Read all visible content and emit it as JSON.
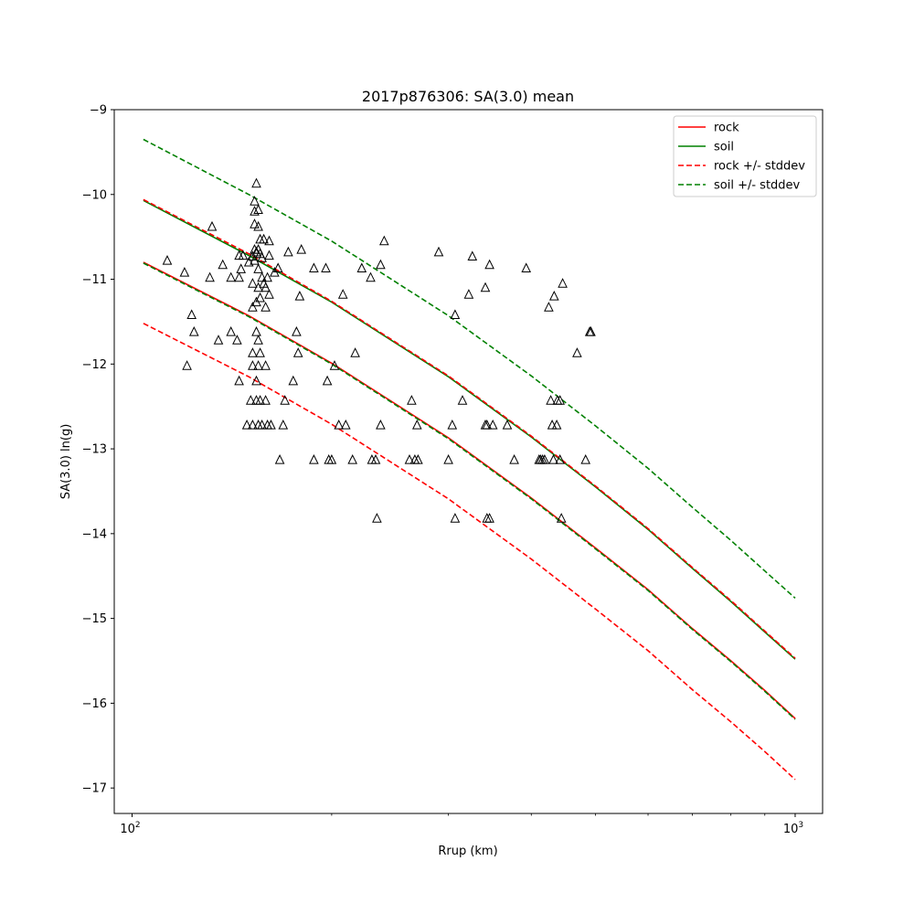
{
  "chart_data": {
    "type": "scatter",
    "title": "2017p876306: SA(3.0) mean",
    "xlabel": "Rrup (km)",
    "ylabel": "SA(3.0) ln(g)",
    "xscale": "log",
    "xlim": [
      94,
      1100
    ],
    "ylim": [
      -17.3,
      -9.0
    ],
    "x_ticks": [
      {
        "value": 100,
        "base": "10",
        "exp": "2"
      },
      {
        "value": 1000,
        "base": "10",
        "exp": "3"
      }
    ],
    "y_ticks": [
      -9,
      -10,
      -11,
      -12,
      -13,
      -14,
      -15,
      -16,
      -17
    ],
    "y_tick_labels": [
      "−9",
      "−10",
      "−11",
      "−12",
      "−13",
      "−14",
      "−15",
      "−16",
      "−17"
    ],
    "legend": {
      "placement": "top-right",
      "entries": [
        {
          "label": "rock",
          "color": "#ff0000",
          "style": "solid"
        },
        {
          "label": "soil",
          "color": "#008000",
          "style": "solid"
        },
        {
          "label": "rock +/- stddev",
          "color": "#ff0000",
          "style": "dashed"
        },
        {
          "label": "soil +/- stddev",
          "color": "#008000",
          "style": "dashed"
        }
      ]
    },
    "lines": [
      {
        "name": "rock",
        "color": "#ff0000",
        "style": "solid",
        "x": [
          104,
          150,
          200,
          300,
          400,
          500,
          600,
          700,
          800,
          900,
          1000
        ],
        "y": [
          -10.8,
          -11.43,
          -11.99,
          -12.87,
          -13.58,
          -14.17,
          -14.66,
          -15.12,
          -15.5,
          -15.85,
          -16.18
        ]
      },
      {
        "name": "soil",
        "color": "#008000",
        "style": "solid",
        "x": [
          104,
          150,
          200,
          300,
          400,
          500,
          600,
          700,
          800,
          900,
          1000
        ],
        "y": [
          -10.07,
          -10.72,
          -11.27,
          -12.15,
          -12.86,
          -13.45,
          -13.95,
          -14.41,
          -14.8,
          -15.16,
          -15.48
        ]
      },
      {
        "name": "rock_minus",
        "color": "#ff0000",
        "style": "dashed",
        "x": [
          104,
          150,
          200,
          300,
          400,
          500,
          600,
          700,
          800,
          900,
          1000
        ],
        "y": [
          -11.52,
          -12.15,
          -12.71,
          -13.59,
          -14.3,
          -14.89,
          -15.38,
          -15.84,
          -16.22,
          -16.57,
          -16.9
        ]
      },
      {
        "name": "rock_plus",
        "color": "#ff0000",
        "style": "dashed",
        "x": [
          104,
          150,
          200,
          300,
          400,
          500,
          600,
          700,
          800,
          900,
          1000
        ],
        "y": [
          -10.06,
          -10.7,
          -11.26,
          -12.14,
          -12.85,
          -13.44,
          -13.94,
          -14.4,
          -14.79,
          -15.15,
          -15.47
        ]
      },
      {
        "name": "soil_minus",
        "color": "#008000",
        "style": "dashed",
        "x": [
          104,
          150,
          200,
          300,
          400,
          500,
          600,
          700,
          800,
          900,
          1000
        ],
        "y": [
          -10.81,
          -11.44,
          -12.0,
          -12.88,
          -13.59,
          -14.18,
          -14.67,
          -15.13,
          -15.51,
          -15.86,
          -16.19
        ]
      },
      {
        "name": "soil_plus",
        "color": "#008000",
        "style": "dashed",
        "x": [
          104,
          150,
          200,
          300,
          400,
          500,
          600,
          700,
          800,
          900,
          1000
        ],
        "y": [
          -9.35,
          -10.0,
          -10.55,
          -11.43,
          -12.14,
          -12.73,
          -13.23,
          -13.69,
          -14.08,
          -14.44,
          -14.76
        ]
      }
    ],
    "points": [
      [
        113,
        -10.78
      ],
      [
        120,
        -10.92
      ],
      [
        121,
        -12.02
      ],
      [
        123,
        -11.42
      ],
      [
        124,
        -11.62
      ],
      [
        131,
        -10.98
      ],
      [
        132,
        -10.38
      ],
      [
        135,
        -11.72
      ],
      [
        137,
        -10.83
      ],
      [
        141,
        -11.62
      ],
      [
        141,
        -10.98
      ],
      [
        144,
        -11.72
      ],
      [
        145,
        -12.2
      ],
      [
        145,
        -10.98
      ],
      [
        145,
        -10.72
      ],
      [
        146,
        -10.88
      ],
      [
        147,
        -10.72
      ],
      [
        149,
        -12.72
      ],
      [
        150,
        -10.8
      ],
      [
        151,
        -12.43
      ],
      [
        152,
        -12.72
      ],
      [
        152,
        -12.02
      ],
      [
        152,
        -11.87
      ],
      [
        152,
        -11.33
      ],
      [
        152,
        -11.05
      ],
      [
        152,
        -10.73
      ],
      [
        153,
        -10.78
      ],
      [
        153,
        -10.65
      ],
      [
        153,
        -10.35
      ],
      [
        153,
        -10.2
      ],
      [
        153,
        -10.08
      ],
      [
        154,
        -9.87
      ],
      [
        154,
        -12.43
      ],
      [
        154,
        -12.2
      ],
      [
        154,
        -11.62
      ],
      [
        154,
        -11.27
      ],
      [
        154,
        -10.68
      ],
      [
        155,
        -10.38
      ],
      [
        155,
        -10.18
      ],
      [
        155,
        -12.72
      ],
      [
        155,
        -12.02
      ],
      [
        155,
        -11.72
      ],
      [
        155,
        -11.1
      ],
      [
        155,
        -10.88
      ],
      [
        155,
        -10.65
      ],
      [
        156,
        -10.53
      ],
      [
        156,
        -10.7
      ],
      [
        156,
        -12.43
      ],
      [
        156,
        -11.87
      ],
      [
        156,
        -11.22
      ],
      [
        157,
        -10.98
      ],
      [
        157,
        -10.75
      ],
      [
        157,
        -12.72
      ],
      [
        158,
        -11.05
      ],
      [
        158,
        -10.53
      ],
      [
        159,
        -11.33
      ],
      [
        159,
        -11.1
      ],
      [
        159,
        -12.43
      ],
      [
        159,
        -12.02
      ],
      [
        160,
        -12.72
      ],
      [
        160,
        -10.98
      ],
      [
        161,
        -10.72
      ],
      [
        161,
        -10.55
      ],
      [
        161,
        -11.18
      ],
      [
        162,
        -12.72
      ],
      [
        164,
        -10.92
      ],
      [
        166,
        -10.87
      ],
      [
        167,
        -13.13
      ],
      [
        169,
        -12.72
      ],
      [
        170,
        -12.43
      ],
      [
        172,
        -10.68
      ],
      [
        175,
        -12.2
      ],
      [
        177,
        -11.62
      ],
      [
        178,
        -11.87
      ],
      [
        179,
        -11.2
      ],
      [
        180,
        -10.65
      ],
      [
        188,
        -10.87
      ],
      [
        188,
        -13.13
      ],
      [
        196,
        -10.87
      ],
      [
        197,
        -12.2
      ],
      [
        198,
        -13.13
      ],
      [
        200,
        -13.13
      ],
      [
        202,
        -12.02
      ],
      [
        205,
        -12.72
      ],
      [
        208,
        -11.18
      ],
      [
        210,
        -12.72
      ],
      [
        215,
        -13.13
      ],
      [
        217,
        -11.87
      ],
      [
        222,
        -10.87
      ],
      [
        229,
        -10.98
      ],
      [
        230,
        -13.13
      ],
      [
        233,
        -13.13
      ],
      [
        234,
        -13.82
      ],
      [
        237,
        -12.72
      ],
      [
        237,
        -10.83
      ],
      [
        240,
        -10.55
      ],
      [
        262,
        -13.13
      ],
      [
        264,
        -12.43
      ],
      [
        267,
        -13.13
      ],
      [
        269,
        -12.72
      ],
      [
        270,
        -13.13
      ],
      [
        290,
        -10.68
      ],
      [
        300,
        -13.13
      ],
      [
        304,
        -12.72
      ],
      [
        307,
        -13.82
      ],
      [
        307,
        -11.42
      ],
      [
        315,
        -12.43
      ],
      [
        322,
        -11.18
      ],
      [
        326,
        -10.73
      ],
      [
        341,
        -12.72
      ],
      [
        341,
        -11.1
      ],
      [
        343,
        -12.72
      ],
      [
        343,
        -13.82
      ],
      [
        346,
        -10.83
      ],
      [
        346,
        -13.82
      ],
      [
        350,
        -12.72
      ],
      [
        368,
        -12.72
      ],
      [
        377,
        -13.13
      ],
      [
        393,
        -10.87
      ],
      [
        411,
        -13.13
      ],
      [
        413,
        -13.13
      ],
      [
        416,
        -13.13
      ],
      [
        419,
        -13.13
      ],
      [
        425,
        -11.33
      ],
      [
        428,
        -12.43
      ],
      [
        430,
        -12.72
      ],
      [
        432,
        -13.13
      ],
      [
        433,
        -11.2
      ],
      [
        437,
        -12.72
      ],
      [
        438,
        -12.43
      ],
      [
        442,
        -12.43
      ],
      [
        442,
        -13.13
      ],
      [
        444,
        -13.82
      ],
      [
        446,
        -11.05
      ],
      [
        469,
        -11.87
      ],
      [
        483,
        -13.13
      ],
      [
        490,
        -11.62
      ],
      [
        492,
        -11.62
      ]
    ]
  }
}
